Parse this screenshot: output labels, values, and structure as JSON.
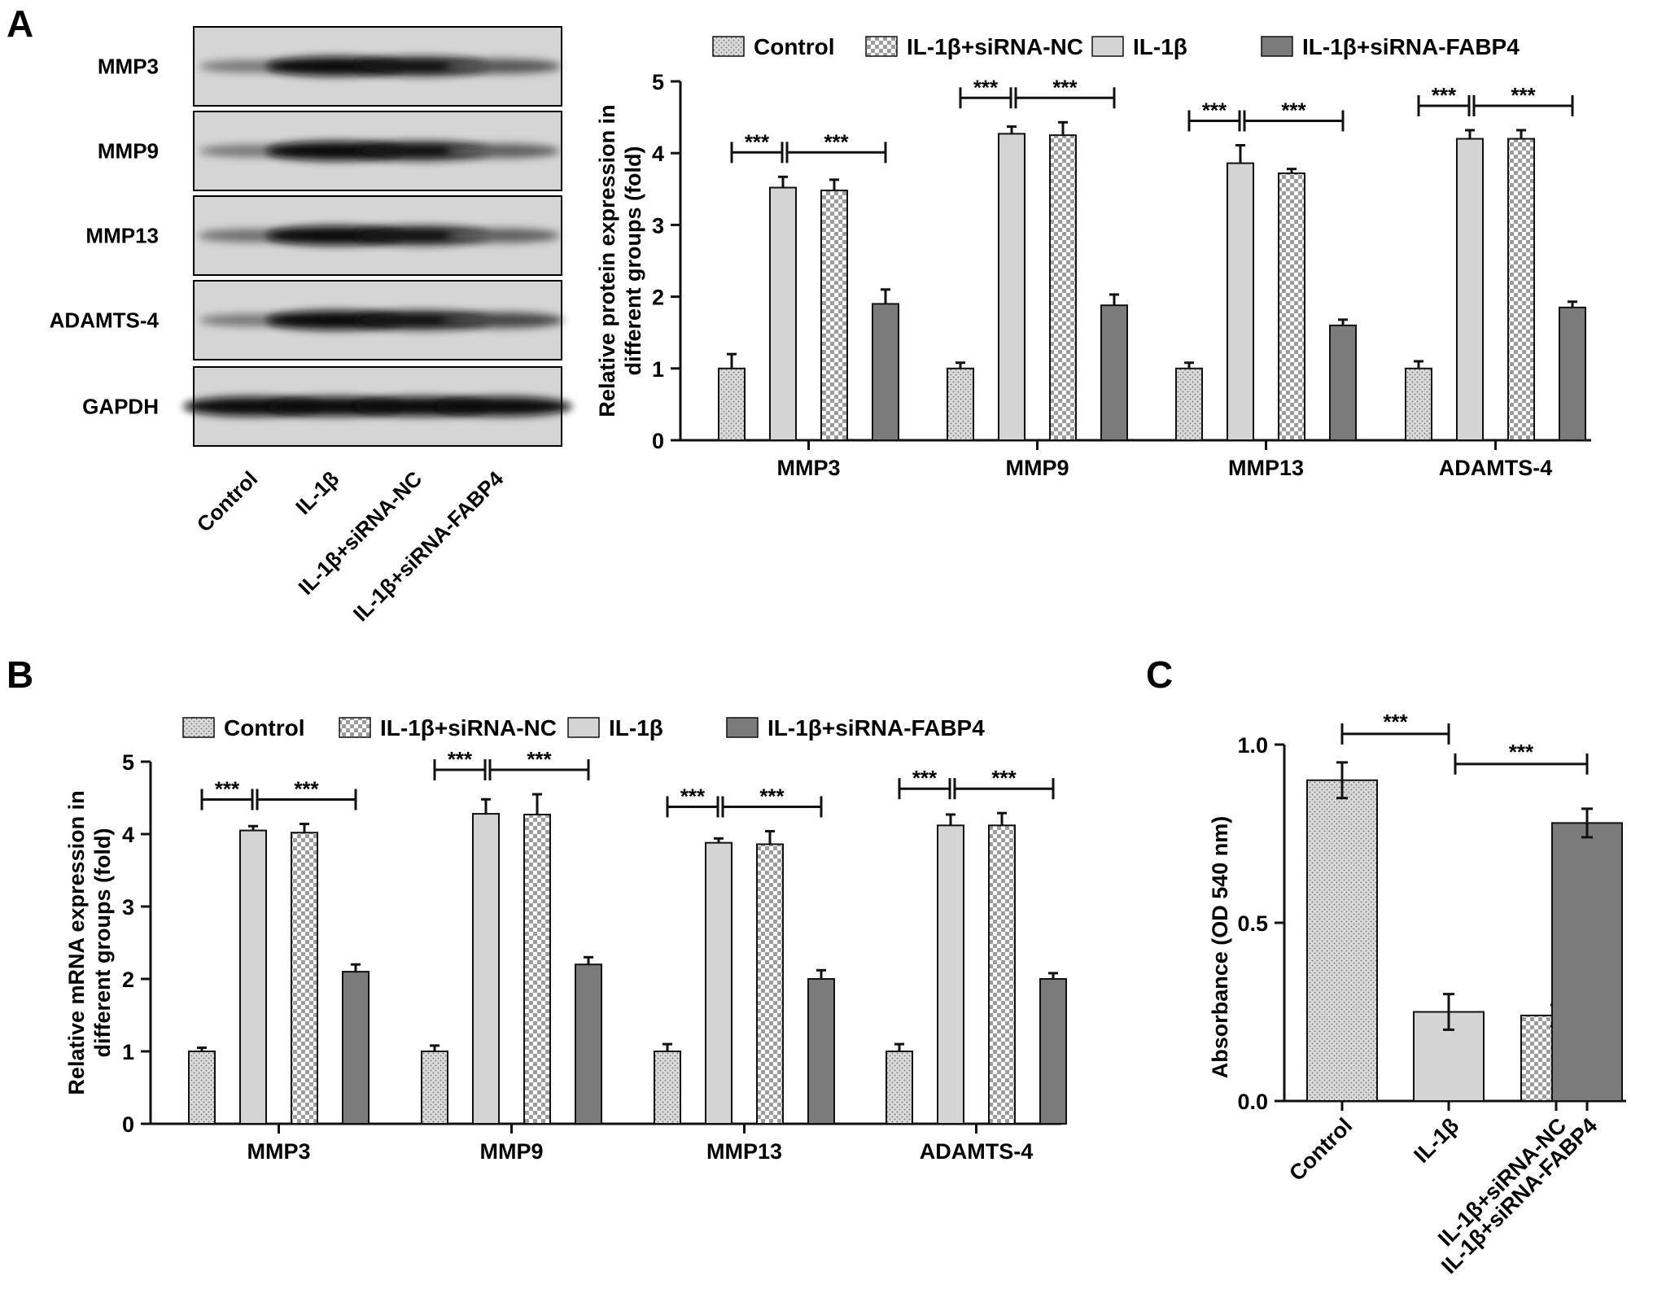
{
  "figure": {
    "panel_a": "A",
    "panel_b": "B",
    "panel_c": "C"
  },
  "colors": {
    "control": "#d2d2d2",
    "il1b": "#d4d4d4",
    "sinc": "#ffffff",
    "fabp4": "#7b7b7b",
    "axis": "#111111"
  },
  "legend": {
    "items": [
      {
        "name": "Control",
        "pattern": "dots"
      },
      {
        "name": "IL-1β+siRNA-NC",
        "pattern": "checker"
      },
      {
        "name": "IL-1β",
        "pattern": "light"
      },
      {
        "name": "IL-1β+siRNA-FABP4",
        "pattern": "dark"
      }
    ]
  },
  "blot": {
    "proteins": [
      "MMP3",
      "MMP9",
      "MMP13",
      "ADAMTS-4",
      "GAPDH"
    ],
    "lanes": [
      "Control",
      "IL-1β",
      "IL-1β+siRNA-NC",
      "IL-1β+siRNA-FABP4"
    ],
    "intensity": [
      [
        0.35,
        1.0,
        0.95,
        0.55
      ],
      [
        0.35,
        1.0,
        0.95,
        0.5
      ],
      [
        0.4,
        1.0,
        0.95,
        0.5
      ],
      [
        0.35,
        1.0,
        0.95,
        0.65
      ],
      [
        1.0,
        1.0,
        1.0,
        1.0
      ]
    ]
  },
  "sig": "***",
  "chart_data": [
    {
      "type": "bar",
      "id": "A",
      "ylabel": "Relative protein expression in different groups (fold)",
      "categories": [
        "MMP3",
        "MMP9",
        "MMP13",
        "ADAMTS-4"
      ],
      "ylim": [
        0,
        5
      ],
      "yticks": [
        0,
        1,
        2,
        3,
        4,
        5
      ],
      "bar_order": [
        "Control",
        "IL-1β",
        "IL-1β+siRNA-NC",
        "IL-1β+siRNA-FABP4"
      ],
      "values": [
        [
          1.0,
          3.52,
          3.48,
          1.9
        ],
        [
          1.0,
          4.27,
          4.25,
          1.88
        ],
        [
          1.0,
          3.86,
          3.72,
          1.6
        ],
        [
          1.0,
          4.2,
          4.2,
          1.85
        ]
      ],
      "errors": [
        [
          0.2,
          0.15,
          0.15,
          0.2
        ],
        [
          0.08,
          0.1,
          0.18,
          0.15
        ],
        [
          0.08,
          0.25,
          0.06,
          0.08
        ],
        [
          0.1,
          0.12,
          0.12,
          0.08
        ]
      ]
    },
    {
      "type": "bar",
      "id": "B",
      "ylabel": "Relative mRNA expression in different groups (fold)",
      "categories": [
        "MMP3",
        "MMP9",
        "MMP13",
        "ADAMTS-4"
      ],
      "ylim": [
        0,
        5
      ],
      "yticks": [
        0,
        1,
        2,
        3,
        4,
        5
      ],
      "bar_order": [
        "Control",
        "IL-1β",
        "IL-1β+siRNA-NC",
        "IL-1β+siRNA-FABP4"
      ],
      "values": [
        [
          1.0,
          4.05,
          4.02,
          2.1
        ],
        [
          1.0,
          4.28,
          4.27,
          2.2
        ],
        [
          1.0,
          3.88,
          3.86,
          2.0
        ],
        [
          1.0,
          4.12,
          4.12,
          2.0
        ]
      ],
      "errors": [
        [
          0.05,
          0.06,
          0.12,
          0.1
        ],
        [
          0.08,
          0.2,
          0.28,
          0.1
        ],
        [
          0.1,
          0.06,
          0.18,
          0.12
        ],
        [
          0.1,
          0.15,
          0.17,
          0.08
        ]
      ]
    },
    {
      "type": "bar",
      "id": "C",
      "ylabel": "Absorbance (OD 540 nm)",
      "categories": [
        "Control",
        "IL-1β",
        "IL-1β+siRNA-NC",
        "IL-1β+siRNA-FABP4"
      ],
      "ylim": [
        0,
        1.0
      ],
      "yticks": [
        "0.0",
        "0.5",
        "1.0"
      ],
      "values": [
        0.9,
        0.25,
        0.24,
        0.78
      ],
      "errors": [
        0.05,
        0.05,
        0.03,
        0.04
      ]
    }
  ]
}
